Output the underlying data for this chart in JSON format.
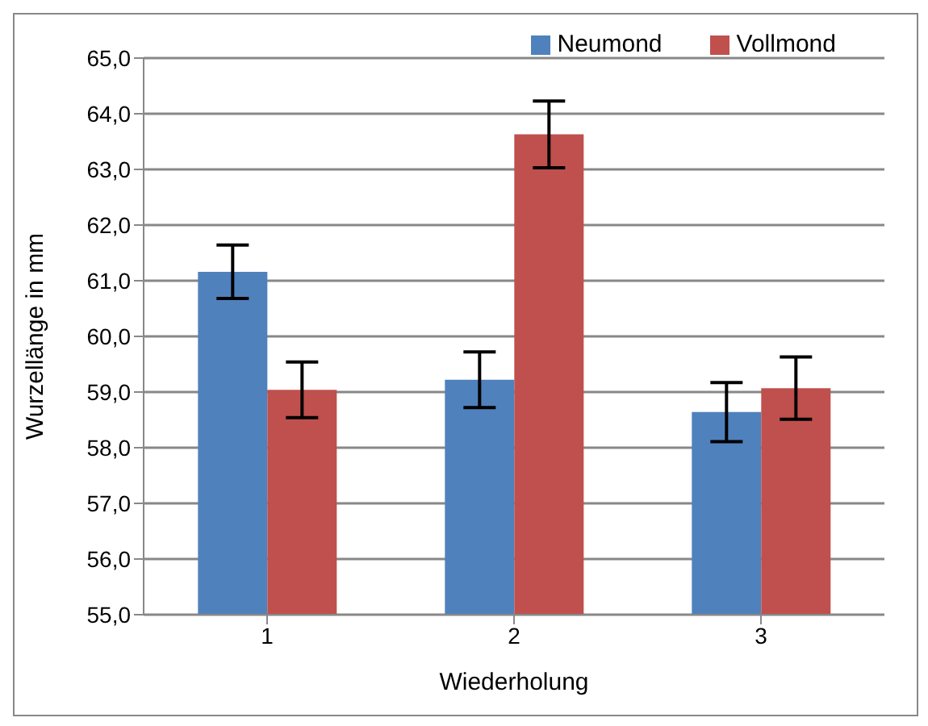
{
  "chart_data": {
    "type": "bar",
    "xlabel": "Wiederholung",
    "ylabel": "Wurzellänge in mm",
    "categories": [
      "1",
      "2",
      "3"
    ],
    "series": [
      {
        "name": "Neumond",
        "color": "#4f81bd",
        "values": [
          61.16,
          59.22,
          58.64
        ],
        "errors": [
          0.48,
          0.5,
          0.53
        ]
      },
      {
        "name": "Vollmond",
        "color": "#c0504d",
        "values": [
          59.04,
          63.63,
          59.07
        ],
        "errors": [
          0.5,
          0.6,
          0.56
        ]
      }
    ],
    "ylim": [
      55,
      65
    ],
    "yticks": [
      {
        "value": 55,
        "label": "55,0"
      },
      {
        "value": 56,
        "label": "56,0"
      },
      {
        "value": 57,
        "label": "57,0"
      },
      {
        "value": 58,
        "label": "58,0"
      },
      {
        "value": 59,
        "label": "59,0"
      },
      {
        "value": 60,
        "label": "60,0"
      },
      {
        "value": 61,
        "label": "61,0"
      },
      {
        "value": 62,
        "label": "62,0"
      },
      {
        "value": 63,
        "label": "63,0"
      },
      {
        "value": 64,
        "label": "64,0"
      },
      {
        "value": 65,
        "label": "65,0"
      }
    ],
    "grid": "y",
    "legend": "top right"
  }
}
